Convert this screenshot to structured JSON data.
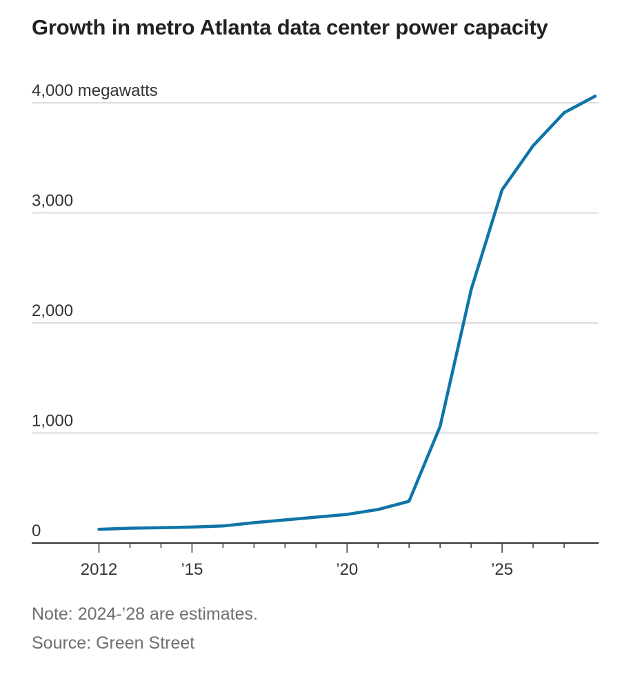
{
  "chart_data": {
    "type": "line",
    "title": "Growth in metro Atlanta data center power capacity",
    "unit": "megawatts",
    "xlabel": "",
    "ylabel": "",
    "xlim": [
      2010,
      2028
    ],
    "ylim": [
      0,
      4000
    ],
    "y_ticks": [
      {
        "value": 0,
        "label": "0"
      },
      {
        "value": 1000,
        "label": "1,000"
      },
      {
        "value": 2000,
        "label": "2,000"
      },
      {
        "value": 3000,
        "label": "3,000"
      },
      {
        "value": 4000,
        "label": "4,000 megawatts"
      }
    ],
    "x_ticks": [
      {
        "value": 2012,
        "label": "2012"
      },
      {
        "value": 2015,
        "label": "’15"
      },
      {
        "value": 2020,
        "label": "’20"
      },
      {
        "value": 2025,
        "label": "’25"
      }
    ],
    "x_minor_ticks": [
      2013,
      2014,
      2016,
      2017,
      2018,
      2019,
      2021,
      2022,
      2023,
      2024,
      2026,
      2027
    ],
    "grid": true,
    "series": [
      {
        "color": "#0f75a8",
        "x": [
          2012,
          2013,
          2014,
          2015,
          2016,
          2017,
          2018,
          2019,
          2020,
          2021,
          2022,
          2023,
          2024,
          2025,
          2026,
          2027,
          2028
        ],
        "values": [
          125,
          135,
          140,
          145,
          155,
          185,
          210,
          235,
          260,
          305,
          380,
          1060,
          2300,
          3210,
          3610,
          3910,
          4060
        ]
      }
    ]
  },
  "note": "Note: 2024-’28 are estimates.",
  "source": "Source: Green Street"
}
